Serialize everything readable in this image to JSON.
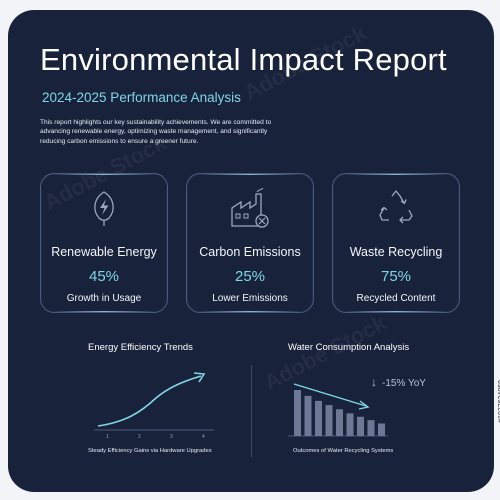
{
  "header": {
    "title": "Environmental Impact Report",
    "subtitle": "2024-2025 Performance Analysis",
    "intro": "This report highlights our key sustainability achievements. We are committed to advancing renewable energy, optimizing waste management, and significantly reducing carbon emissions to ensure a greener future."
  },
  "tiles": [
    {
      "label": "Renewable Energy",
      "value": "45%",
      "desc": "Growth in Usage",
      "icon": "leaf-bolt-icon"
    },
    {
      "label": "Carbon Emissions",
      "value": "25%",
      "desc": "Lower Emissions",
      "icon": "factory-icon"
    },
    {
      "label": "Waste Recycling",
      "value": "75%",
      "desc": "Recycled Content",
      "icon": "recycle-icon"
    }
  ],
  "energy": {
    "title": "Energy Efficiency Trends",
    "caption": "Steady Efficiency Gains via Hardware Upgrades",
    "ticks": [
      "1",
      "2",
      "3",
      "4"
    ]
  },
  "water": {
    "title": "Water Consumption Analysis",
    "annotation": "-15% YoY",
    "caption": "Outcomes of Water Recycling Systems",
    "bars": [
      55,
      48,
      42,
      37,
      32,
      27,
      23,
      19,
      15
    ]
  },
  "watermark": "Adobe Stock",
  "side_id": "#1977634858",
  "colors": {
    "background": "#19223b",
    "accent": "#7fd6e6",
    "page": "#f3f4f8"
  }
}
